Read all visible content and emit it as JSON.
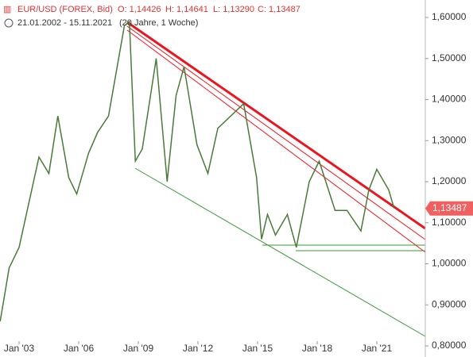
{
  "chart_data": {
    "type": "line",
    "header": {
      "symbol": "EUR/USD (FOREX, Bid)",
      "open": "O: 1,14426",
      "high": "H: 1,14641",
      "low": "L: 1,13290",
      "close": "C: 1,13487",
      "range": "21.01.2002 - 15.11.2021",
      "period": "(20 Jahre, 1 Woche)"
    },
    "x": [
      2002.05,
      2002.5,
      2003.0,
      2003.5,
      2004.0,
      2004.5,
      2004.95,
      2005.5,
      2005.9,
      2006.5,
      2006.95,
      2007.5,
      2007.9,
      2008.3,
      2008.55,
      2008.85,
      2009.2,
      2009.9,
      2010.45,
      2010.9,
      2011.3,
      2011.95,
      2012.5,
      2013.0,
      2014.3,
      2014.95,
      2015.2,
      2015.5,
      2015.9,
      2016.5,
      2016.95,
      2017.6,
      2018.1,
      2018.9,
      2019.5,
      2020.2,
      2020.6,
      2021.0,
      2021.6,
      2021.87
    ],
    "series": [
      {
        "name": "EUR/USD",
        "color": "#4a7a3a",
        "values": [
          0.86,
          0.99,
          1.04,
          1.15,
          1.26,
          1.22,
          1.36,
          1.21,
          1.17,
          1.27,
          1.32,
          1.36,
          1.47,
          1.58,
          1.59,
          1.25,
          1.28,
          1.5,
          1.2,
          1.41,
          1.48,
          1.29,
          1.22,
          1.33,
          1.39,
          1.21,
          1.06,
          1.12,
          1.07,
          1.12,
          1.04,
          1.2,
          1.25,
          1.13,
          1.13,
          1.08,
          1.18,
          1.23,
          1.18,
          1.135
        ]
      }
    ],
    "last_price": {
      "value": 1.13487,
      "label": "1,13487"
    },
    "xlim": [
      2002.04,
      2023.44
    ],
    "xticks": [
      {
        "value": 2003,
        "label": "Jan '03"
      },
      {
        "value": 2006,
        "label": "Jan '06"
      },
      {
        "value": 2009,
        "label": "Jan '09"
      },
      {
        "value": 2012,
        "label": "Jan '12"
      },
      {
        "value": 2015,
        "label": "Jan '15"
      },
      {
        "value": 2018,
        "label": "Jan '18"
      },
      {
        "value": 2021,
        "label": "Jan '21"
      }
    ],
    "ylim": [
      0.773,
      1.6425
    ],
    "yticks": [
      {
        "value": 0.8,
        "label": "0,80000"
      },
      {
        "value": 0.9,
        "label": "0,90000"
      },
      {
        "value": 1.0,
        "label": "1,00000"
      },
      {
        "value": 1.1,
        "label": "1,10000"
      },
      {
        "value": 1.2,
        "label": "1,20000"
      },
      {
        "value": 1.3,
        "label": "1,30000"
      },
      {
        "value": 1.4,
        "label": "1,40000"
      },
      {
        "value": 1.5,
        "label": "1,50000"
      },
      {
        "value": 1.6,
        "label": "1,60000"
      }
    ]
  }
}
